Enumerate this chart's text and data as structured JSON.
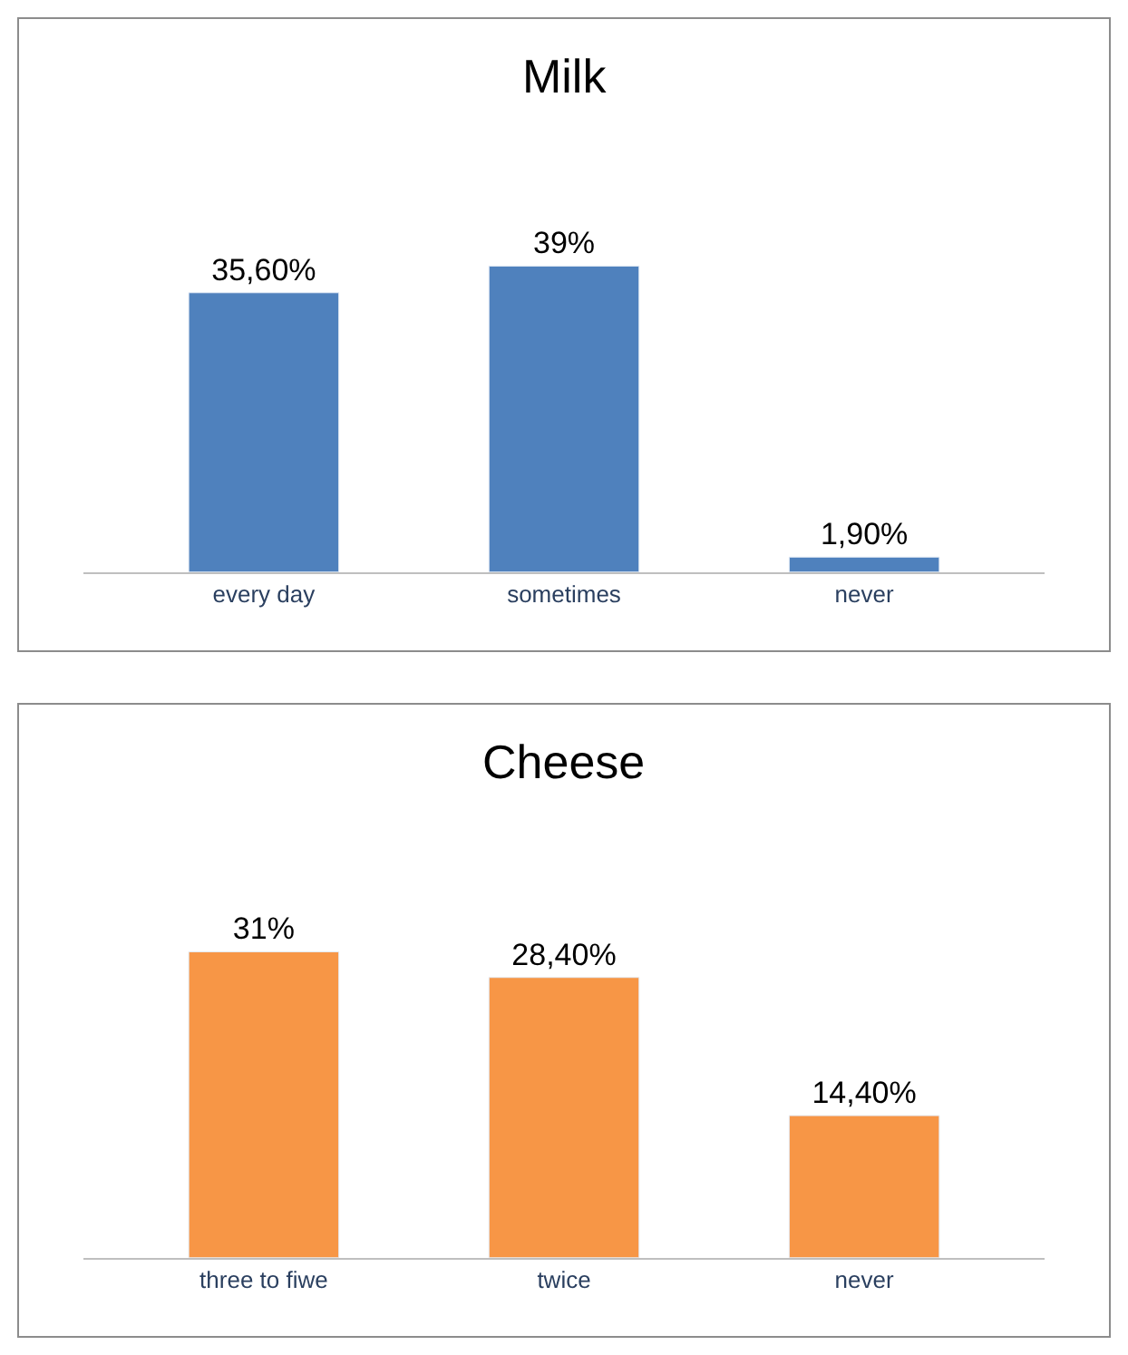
{
  "chart_data": [
    {
      "type": "bar",
      "title": "Milk",
      "categories": [
        "every day",
        "sometimes",
        "never"
      ],
      "values": [
        35.6,
        39,
        1.9
      ],
      "color": "#4f81bd",
      "value_labels": [
        "35,60%",
        "39%",
        "1,90%"
      ]
    },
    {
      "type": "bar",
      "title": "Cheese",
      "categories": [
        "three to fiwe",
        "twice",
        "never"
      ],
      "values": [
        31,
        28.4,
        14.4
      ],
      "color": "#f79646",
      "value_labels": [
        "31%",
        "28,40%",
        "14,40%"
      ]
    }
  ]
}
